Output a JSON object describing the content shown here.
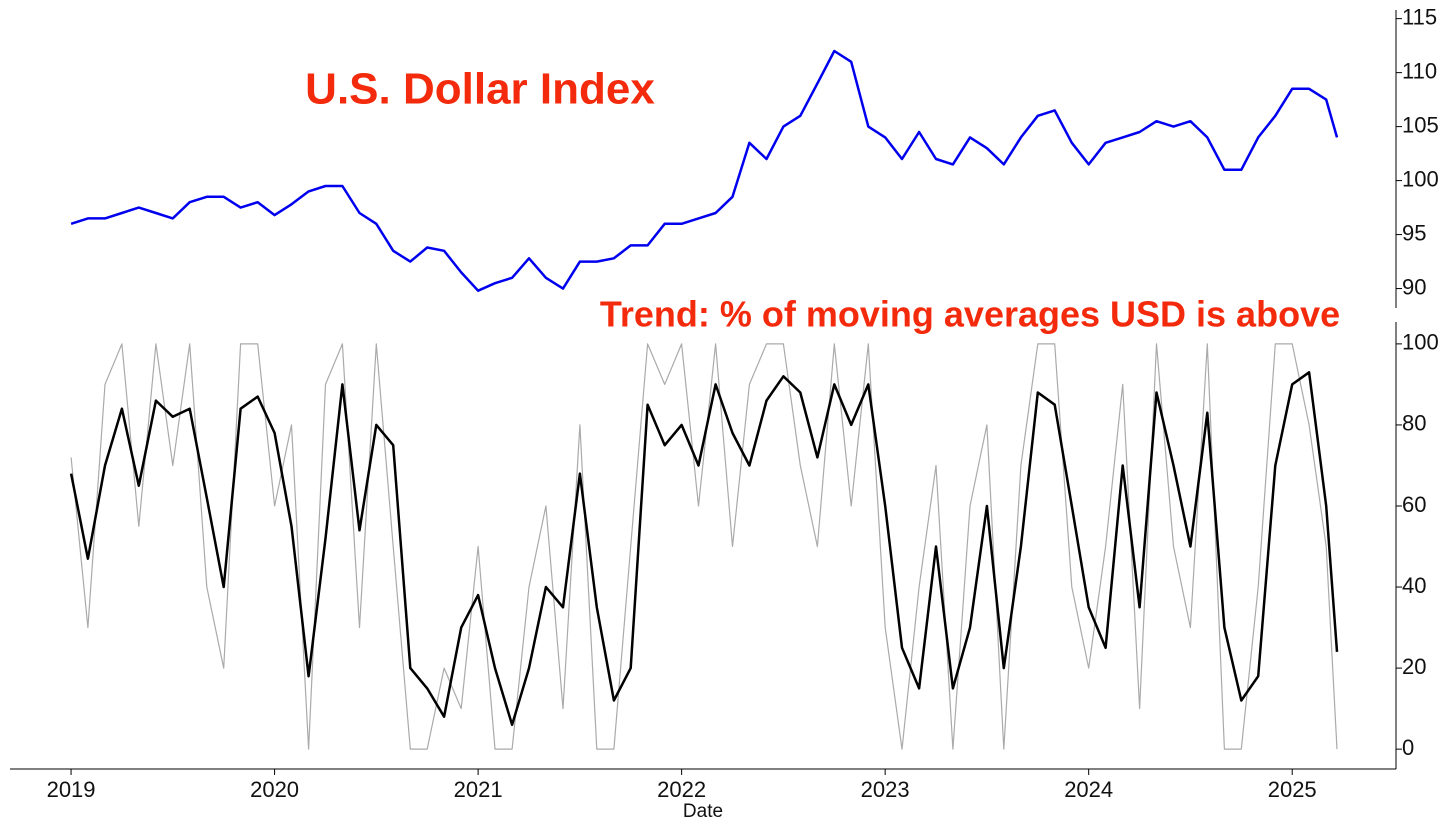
{
  "chart_data": [
    {
      "type": "line",
      "title": "U.S. Dollar Index",
      "x": [
        2019,
        2019.083,
        2019.167,
        2019.25,
        2019.333,
        2019.417,
        2019.5,
        2019.583,
        2019.667,
        2019.75,
        2019.833,
        2019.917,
        2020,
        2020.083,
        2020.167,
        2020.25,
        2020.333,
        2020.417,
        2020.5,
        2020.583,
        2020.667,
        2020.75,
        2020.833,
        2020.917,
        2021,
        2021.083,
        2021.167,
        2021.25,
        2021.333,
        2021.417,
        2021.5,
        2021.583,
        2021.667,
        2021.75,
        2021.833,
        2021.917,
        2022,
        2022.083,
        2022.167,
        2022.25,
        2022.333,
        2022.417,
        2022.5,
        2022.583,
        2022.667,
        2022.75,
        2022.833,
        2022.917,
        2023,
        2023.083,
        2023.167,
        2023.25,
        2023.333,
        2023.417,
        2023.5,
        2023.583,
        2023.667,
        2023.75,
        2023.833,
        2023.917,
        2024,
        2024.083,
        2024.167,
        2024.25,
        2024.333,
        2024.417,
        2024.5,
        2024.583,
        2024.667,
        2024.75,
        2024.833,
        2024.917,
        2025,
        2025.083,
        2025.167,
        2025.22
      ],
      "series": [
        {
          "color": "#0000ee",
          "values": [
            96,
            96.5,
            96.5,
            97,
            97.5,
            97,
            96.5,
            98,
            98.5,
            98.5,
            97.5,
            98,
            96.8,
            97.8,
            99,
            99.5,
            99.5,
            97,
            96,
            93.5,
            92.5,
            93.8,
            93.5,
            91.5,
            89.8,
            90.5,
            91,
            92.8,
            91,
            90,
            92.5,
            92.5,
            92.8,
            94,
            94,
            96,
            96,
            96.5,
            97,
            98.5,
            103.5,
            102,
            105,
            106,
            109,
            112,
            111,
            105,
            104,
            102,
            104.5,
            102,
            101.5,
            104,
            103,
            101.5,
            104,
            106,
            106.5,
            103.5,
            101.5,
            103.5,
            104,
            104.5,
            105.5,
            105,
            105.5,
            104,
            101,
            101,
            104,
            106,
            108.5,
            108.5,
            107.5,
            104
          ]
        }
      ],
      "xlim": [
        2018.7,
        2025.51
      ],
      "ylim": [
        88.2,
        115.8
      ],
      "yticks": [
        90,
        95,
        100,
        105,
        110,
        115
      ]
    },
    {
      "type": "line",
      "title": "Trend: % of moving averages USD is above",
      "xlabel": "Date",
      "x": [
        2019,
        2019.083,
        2019.167,
        2019.25,
        2019.333,
        2019.417,
        2019.5,
        2019.583,
        2019.667,
        2019.75,
        2019.833,
        2019.917,
        2020,
        2020.083,
        2020.167,
        2020.25,
        2020.333,
        2020.417,
        2020.5,
        2020.583,
        2020.667,
        2020.75,
        2020.833,
        2020.917,
        2021,
        2021.083,
        2021.167,
        2021.25,
        2021.333,
        2021.417,
        2021.5,
        2021.583,
        2021.667,
        2021.75,
        2021.833,
        2021.917,
        2022,
        2022.083,
        2022.167,
        2022.25,
        2022.333,
        2022.417,
        2022.5,
        2022.583,
        2022.667,
        2022.75,
        2022.833,
        2022.917,
        2023,
        2023.083,
        2023.167,
        2023.25,
        2023.333,
        2023.417,
        2023.5,
        2023.583,
        2023.667,
        2023.75,
        2023.833,
        2023.917,
        2024,
        2024.083,
        2024.167,
        2024.25,
        2024.333,
        2024.417,
        2024.5,
        2024.583,
        2024.667,
        2024.75,
        2024.833,
        2024.917,
        2025,
        2025.083,
        2025.167,
        2025.22
      ],
      "series": [
        {
          "color": "#aaaaaa",
          "values": [
            72,
            30,
            90,
            100,
            55,
            100,
            70,
            100,
            40,
            20,
            100,
            100,
            60,
            80,
            0,
            90,
            100,
            30,
            100,
            50,
            0,
            0,
            20,
            10,
            50,
            0,
            0,
            40,
            60,
            10,
            80,
            0,
            0,
            50,
            100,
            90,
            100,
            60,
            100,
            50,
            90,
            100,
            100,
            70,
            50,
            100,
            60,
            100,
            30,
            0,
            40,
            70,
            0,
            60,
            80,
            0,
            70,
            100,
            100,
            40,
            20,
            50,
            90,
            10,
            100,
            50,
            30,
            100,
            0,
            0,
            40,
            100,
            100,
            80,
            50,
            0
          ]
        },
        {
          "color": "#000000",
          "values": [
            68,
            47,
            70,
            84,
            65,
            86,
            82,
            84,
            62,
            40,
            84,
            87,
            78,
            55,
            18,
            52,
            90,
            54,
            80,
            75,
            20,
            15,
            8,
            30,
            38,
            20,
            6,
            20,
            40,
            35,
            68,
            35,
            12,
            20,
            85,
            75,
            80,
            70,
            90,
            78,
            70,
            86,
            92,
            88,
            72,
            90,
            80,
            90,
            60,
            25,
            15,
            50,
            15,
            30,
            60,
            20,
            50,
            88,
            85,
            60,
            35,
            25,
            70,
            35,
            88,
            70,
            50,
            83,
            30,
            12,
            18,
            70,
            90,
            93,
            60,
            24
          ]
        }
      ],
      "xlim": [
        2018.7,
        2025.51
      ],
      "ylim": [
        -4.9,
        105.4
      ],
      "yticks": [
        0,
        20,
        40,
        60,
        80,
        100
      ],
      "xticks": [
        2019,
        2020,
        2021,
        2022,
        2023,
        2024,
        2025
      ]
    }
  ]
}
